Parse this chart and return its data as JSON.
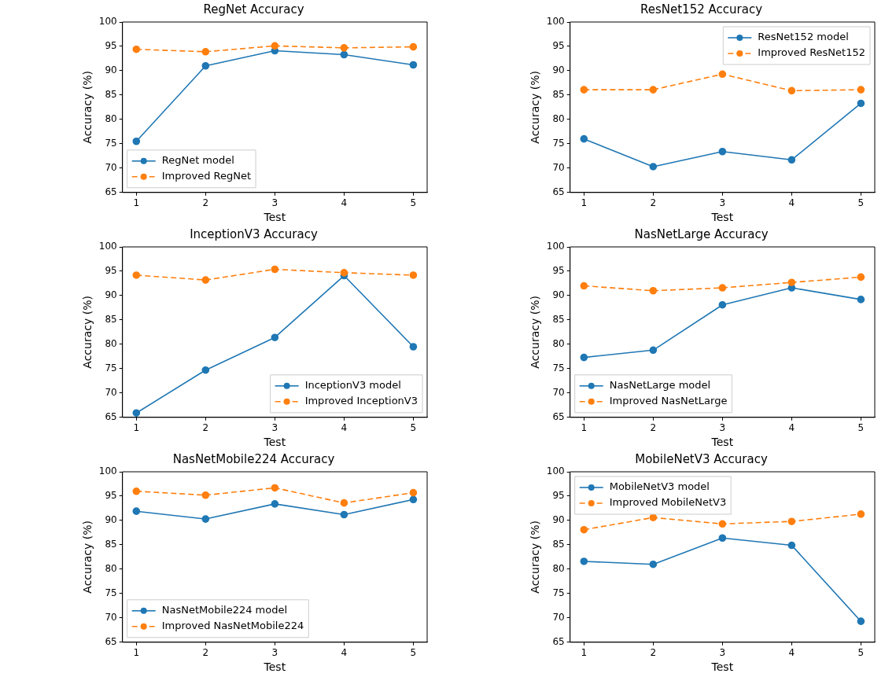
{
  "chart_data": [
    {
      "type": "line",
      "title": "RegNet Accuracy",
      "xlabel": "Test",
      "ylabel": "Accuracy (%)",
      "x": [
        1,
        2,
        3,
        4,
        5
      ],
      "xlim": [
        0.8,
        5.2
      ],
      "xticks": [
        1,
        2,
        3,
        4,
        5
      ],
      "ylim": [
        65,
        100
      ],
      "yticks": [
        65,
        70,
        75,
        80,
        85,
        90,
        95,
        100
      ],
      "grid": false,
      "legend": "bottom left",
      "marker": "circle",
      "series": [
        {
          "name": "RegNet model",
          "color": "#1f77b4",
          "line_style": "solid",
          "values": [
            75.5,
            91.0,
            94.1,
            93.3,
            91.2
          ]
        },
        {
          "name": "Improved RegNet",
          "color": "#ff7f0e",
          "line_style": "dashed",
          "values": [
            94.4,
            93.9,
            95.1,
            94.7,
            94.9
          ]
        }
      ]
    },
    {
      "type": "line",
      "title": "ResNet152 Accuracy",
      "xlabel": "Test",
      "ylabel": "Accuracy (%)",
      "x": [
        1,
        2,
        3,
        4,
        5
      ],
      "xlim": [
        0.8,
        5.2
      ],
      "xticks": [
        1,
        2,
        3,
        4,
        5
      ],
      "ylim": [
        65,
        100
      ],
      "yticks": [
        65,
        70,
        75,
        80,
        85,
        90,
        95,
        100
      ],
      "grid": false,
      "legend": "top right",
      "marker": "circle",
      "series": [
        {
          "name": "ResNet152 model",
          "color": "#1f77b4",
          "line_style": "solid",
          "values": [
            76.0,
            70.3,
            73.4,
            71.7,
            83.3
          ]
        },
        {
          "name": "Improved ResNet152",
          "color": "#ff7f0e",
          "line_style": "dashed",
          "values": [
            86.1,
            86.1,
            89.3,
            85.9,
            86.1
          ]
        }
      ]
    },
    {
      "type": "line",
      "title": "InceptionV3 Accuracy",
      "xlabel": "Test",
      "ylabel": "Accuracy (%)",
      "x": [
        1,
        2,
        3,
        4,
        5
      ],
      "xlim": [
        0.8,
        5.2
      ],
      "xticks": [
        1,
        2,
        3,
        4,
        5
      ],
      "ylim": [
        65,
        100
      ],
      "yticks": [
        65,
        70,
        75,
        80,
        85,
        90,
        95,
        100
      ],
      "grid": false,
      "legend": "bottom right",
      "marker": "circle",
      "series": [
        {
          "name": "InceptionV3 model",
          "color": "#1f77b4",
          "line_style": "solid",
          "values": [
            65.9,
            74.7,
            81.4,
            94.1,
            79.5
          ]
        },
        {
          "name": "Improved InceptionV3",
          "color": "#ff7f0e",
          "line_style": "dashed",
          "values": [
            94.2,
            93.2,
            95.4,
            94.7,
            94.2
          ]
        }
      ]
    },
    {
      "type": "line",
      "title": "NasNetLarge Accuracy",
      "xlabel": "Test",
      "ylabel": "Accuracy (%)",
      "x": [
        1,
        2,
        3,
        4,
        5
      ],
      "xlim": [
        0.8,
        5.2
      ],
      "xticks": [
        1,
        2,
        3,
        4,
        5
      ],
      "ylim": [
        65,
        100
      ],
      "yticks": [
        65,
        70,
        75,
        80,
        85,
        90,
        95,
        100
      ],
      "grid": false,
      "legend": "bottom left",
      "marker": "circle",
      "series": [
        {
          "name": "NasNetLarge model",
          "color": "#1f77b4",
          "line_style": "solid",
          "values": [
            77.3,
            78.8,
            88.1,
            91.6,
            89.2
          ]
        },
        {
          "name": "Improved NasNetLarge",
          "color": "#ff7f0e",
          "line_style": "dashed",
          "values": [
            92.0,
            91.0,
            91.6,
            92.7,
            93.8
          ]
        }
      ]
    },
    {
      "type": "line",
      "title": "NasNetMobile224 Accuracy",
      "xlabel": "Test",
      "ylabel": "Accuracy (%)",
      "x": [
        1,
        2,
        3,
        4,
        5
      ],
      "xlim": [
        0.8,
        5.2
      ],
      "xticks": [
        1,
        2,
        3,
        4,
        5
      ],
      "ylim": [
        65,
        100
      ],
      "yticks": [
        65,
        70,
        75,
        80,
        85,
        90,
        95,
        100
      ],
      "grid": false,
      "legend": "bottom left",
      "marker": "circle",
      "series": [
        {
          "name": "NasNetMobile224 model",
          "color": "#1f77b4",
          "line_style": "solid",
          "values": [
            91.9,
            90.3,
            93.4,
            91.2,
            94.3
          ]
        },
        {
          "name": "Improved NasNetMobile224",
          "color": "#ff7f0e",
          "line_style": "dashed",
          "values": [
            96.0,
            95.2,
            96.7,
            93.6,
            95.7
          ]
        }
      ]
    },
    {
      "type": "line",
      "title": "MobileNetV3 Accuracy",
      "xlabel": "Test",
      "ylabel": "Accuracy (%)",
      "x": [
        1,
        2,
        3,
        4,
        5
      ],
      "xlim": [
        0.8,
        5.2
      ],
      "xticks": [
        1,
        2,
        3,
        4,
        5
      ],
      "ylim": [
        65,
        100
      ],
      "yticks": [
        65,
        70,
        75,
        80,
        85,
        90,
        95,
        100
      ],
      "grid": false,
      "legend": "top left",
      "marker": "circle",
      "series": [
        {
          "name": "MobileNetV3 model",
          "color": "#1f77b4",
          "line_style": "solid",
          "values": [
            81.6,
            81.0,
            86.4,
            84.9,
            69.3
          ]
        },
        {
          "name": "Improved MobileNetV3",
          "color": "#ff7f0e",
          "line_style": "dashed",
          "values": [
            88.1,
            90.6,
            89.3,
            89.8,
            91.3
          ]
        }
      ]
    }
  ]
}
